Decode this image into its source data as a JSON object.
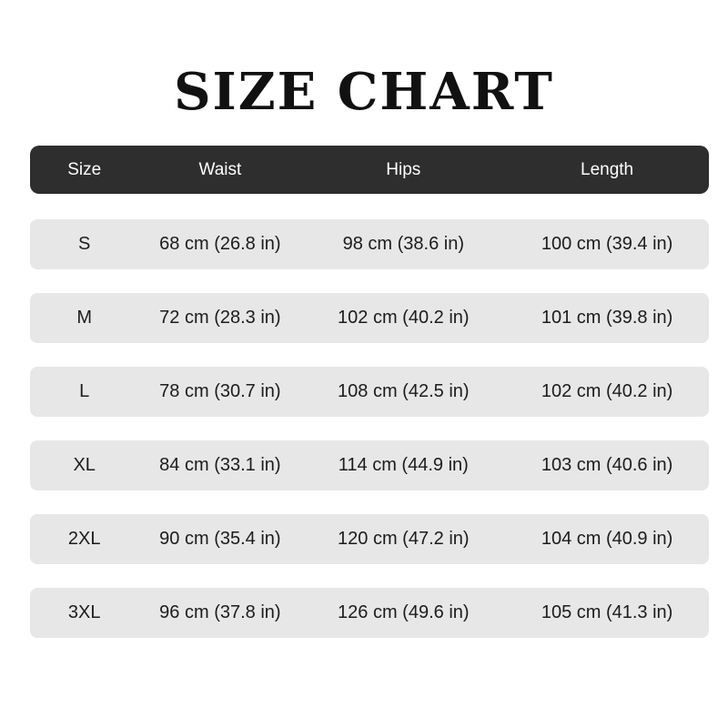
{
  "title": "SIZE CHART",
  "table": {
    "columns": [
      "Size",
      "Waist",
      "Hips",
      "Length"
    ],
    "rows": [
      {
        "size": "S",
        "waist": "68 cm (26.8 in)",
        "hips": "98 cm (38.6 in)",
        "length": "100 cm (39.4 in)"
      },
      {
        "size": "M",
        "waist": "72 cm (28.3 in)",
        "hips": "102 cm (40.2 in)",
        "length": "101 cm (39.8 in)"
      },
      {
        "size": "L",
        "waist": "78 cm (30.7 in)",
        "hips": "108 cm (42.5 in)",
        "length": "102 cm (40.2 in)"
      },
      {
        "size": "XL",
        "waist": "84 cm (33.1 in)",
        "hips": "114 cm (44.9 in)",
        "length": "103 cm (40.6 in)"
      },
      {
        "size": "2XL",
        "waist": "90 cm (35.4 in)",
        "hips": "120 cm (47.2 in)",
        "length": "104 cm (40.9 in)"
      },
      {
        "size": "3XL",
        "waist": "96 cm (37.8 in)",
        "hips": "126 cm (49.6 in)",
        "length": "105 cm (41.3 in)"
      }
    ]
  },
  "colors": {
    "page_bg": "#ffffff",
    "header_bg": "#2e2e2e",
    "header_text": "#ffffff",
    "row_bg": "#e7e7e7",
    "row_text": "#1c1c1c",
    "title_color": "#111111"
  }
}
